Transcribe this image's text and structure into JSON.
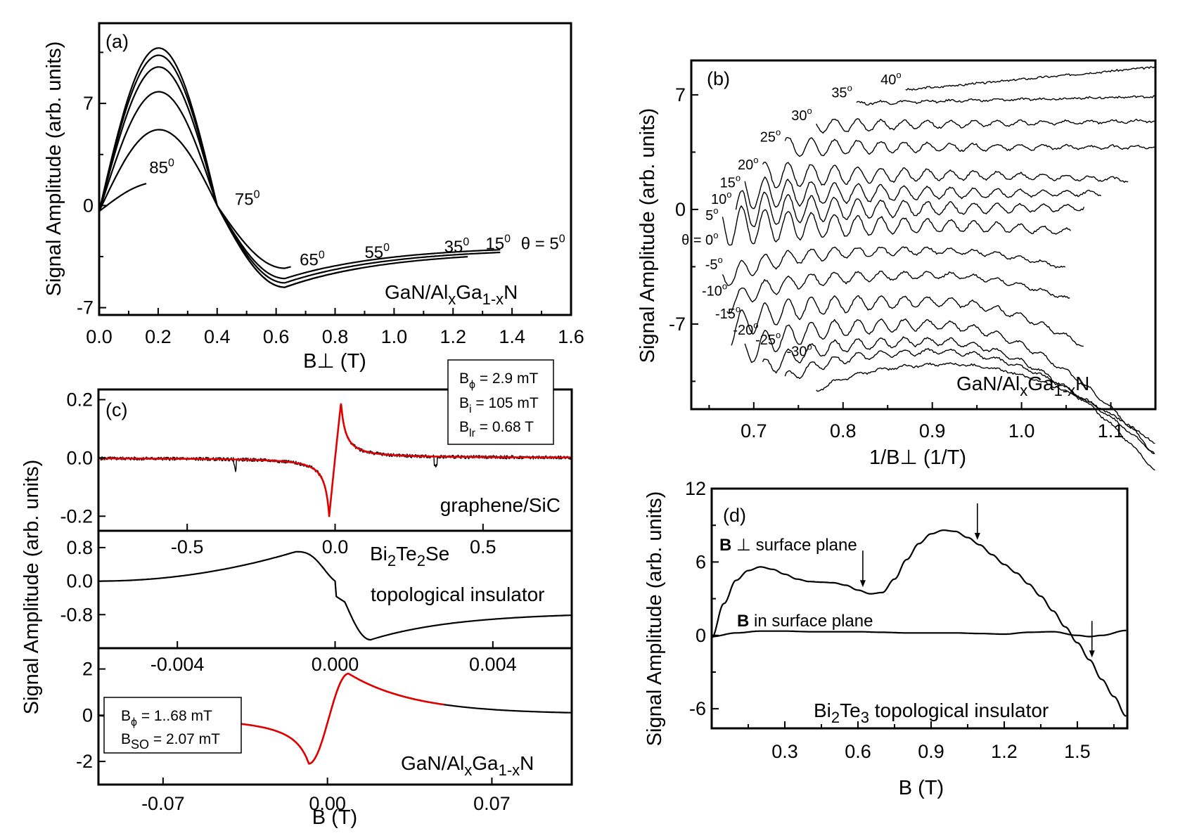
{
  "chart_data": [
    {
      "id": "a",
      "type": "line",
      "panel_label": "(a)",
      "title": "",
      "xlabel": "B⊥ (T)",
      "ylabel": "Signal Amplitude (arb. units)",
      "xlim": [
        0.0,
        1.6
      ],
      "ylim": [
        -7.5,
        12.5
      ],
      "xticks": [
        "0.0",
        "0.2",
        "0.4",
        "0.6",
        "0.8",
        "1.0",
        "1.2",
        "1.4",
        "1.6"
      ],
      "yticks": [
        "-7",
        "0",
        "7"
      ],
      "sample_label": "GaN/AlxGa1-xN",
      "sample_parts": {
        "a": "GaN/Al",
        "b": "x",
        "c": "Ga",
        "d": "1-x",
        "e": "N"
      },
      "grid": false,
      "legend": "none",
      "annotations": [
        {
          "text": "85",
          "sup": "0",
          "x": 0.17,
          "y": 2.2
        },
        {
          "text": "75",
          "sup": "0",
          "x": 0.46,
          "y": 0.05
        },
        {
          "text": "65",
          "sup": "0",
          "x": 0.68,
          "y": -4.1
        },
        {
          "text": "55",
          "sup": "0",
          "x": 0.9,
          "y": -3.6
        },
        {
          "text": "35",
          "sup": "0",
          "x": 1.17,
          "y": -3.2
        },
        {
          "text": "15",
          "sup": "0",
          "x": 1.31,
          "y": -3.0
        },
        {
          "text": "θ = 5",
          "sup": "0",
          "x": 1.43,
          "y": -3.0
        }
      ],
      "series": [
        {
          "name": "5°",
          "peak": 11.0,
          "trough": -5.3,
          "x_end": 1.36
        },
        {
          "name": "15°",
          "peak": 10.5,
          "trough": -5.0,
          "x_end": 1.36
        },
        {
          "name": "35°",
          "peak": 9.7,
          "trough": -5.6,
          "x_end": 1.25
        },
        {
          "name": "55°",
          "peak": 8.0,
          "trough": -5.6,
          "x_end": 0.88
        },
        {
          "name": "65°",
          "peak": 5.4,
          "trough": -4.3,
          "x_end": 0.65
        },
        {
          "name": "85°",
          "peak": 2.0,
          "trough": 0.0,
          "x_end": 0.16
        }
      ]
    },
    {
      "id": "b",
      "type": "line",
      "panel_label": "(b)",
      "xlabel": "1/B⊥ (1/T)",
      "ylabel": "Signal Amplitude (arb. units)",
      "xlim": [
        0.63,
        1.15
      ],
      "ylim": [
        -12.2,
        9.1
      ],
      "xticks": [
        "0.7",
        "0.8",
        "0.9",
        "1.0",
        "1.1"
      ],
      "xtick_values": [
        0.7,
        0.8,
        0.9,
        1.0,
        1.1
      ],
      "yticks": [
        "-7",
        "0",
        "7"
      ],
      "ytick_values": [
        -7,
        0,
        7
      ],
      "sample_parts": {
        "a": "GaN/Al",
        "b": "x",
        "c": "Ga",
        "d": "1-x",
        "e": "N"
      },
      "grid": false,
      "legend": "none",
      "series": [
        {
          "name": "40°",
          "label": "40",
          "x_start": 0.87,
          "x_end": 1.15,
          "offset": 7.3,
          "trend": 1.4,
          "osc": 0.05
        },
        {
          "name": "35°",
          "label": "35",
          "x_start": 0.815,
          "x_end": 1.15,
          "offset": 6.5,
          "trend": 0.4,
          "osc": 0.1
        },
        {
          "name": "30°",
          "label": "30",
          "x_start": 0.77,
          "x_end": 1.15,
          "offset": 5.1,
          "trend": 0.3,
          "osc": 0.35
        },
        {
          "name": "25°",
          "label": "25",
          "x_start": 0.735,
          "x_end": 1.15,
          "offset": 3.8,
          "trend": 0.0,
          "osc": 0.4
        },
        {
          "name": "20°",
          "label": "20",
          "x_start": 0.71,
          "x_end": 1.12,
          "offset": 2.1,
          "trend": -0.2,
          "osc": 0.5
        },
        {
          "name": "15°",
          "label": "15",
          "x_start": 0.69,
          "x_end": 1.09,
          "offset": 1.0,
          "trend": 0.0,
          "osc": 0.55
        },
        {
          "name": "10°",
          "label": "10",
          "x_start": 0.68,
          "x_end": 1.07,
          "offset": 0.0,
          "trend": 0.1,
          "osc": 0.6
        },
        {
          "name": "5°",
          "label": "5",
          "x_start": 0.665,
          "x_end": 1.055,
          "offset": -1.0,
          "trend": -0.5,
          "osc": 0.6
        },
        {
          "name": "0°",
          "label": "θ = 0",
          "x_start": 0.665,
          "x_end": 1.05,
          "offset": -2.5,
          "trend": -1.5,
          "osc": 0.3
        },
        {
          "name": "-5°",
          "label": "-5",
          "x_start": 0.67,
          "x_end": 1.055,
          "offset": -4.0,
          "trend": -2.0,
          "osc": 0.3
        },
        {
          "name": "-10°",
          "label": "-10",
          "x_start": 0.675,
          "x_end": 1.07,
          "offset": -5.6,
          "trend": -3.0,
          "osc": 0.45
        },
        {
          "name": "-15°",
          "label": "-15",
          "x_start": 0.69,
          "x_end": 1.15,
          "offset": -7.0,
          "trend": -4.0,
          "osc": 0.45
        },
        {
          "name": "-20°",
          "label": "-20",
          "x_start": 0.71,
          "x_end": 1.15,
          "offset": -8.0,
          "trend": -4.0,
          "osc": 0.35
        },
        {
          "name": "-25°",
          "label": "-25",
          "x_start": 0.735,
          "x_end": 1.15,
          "offset": -8.6,
          "trend": -3.2,
          "osc": 0.25
        },
        {
          "name": "-30°",
          "label": "-30",
          "x_start": 0.77,
          "x_end": 1.15,
          "offset": -9.3,
          "trend": -2.5,
          "osc": 0.1
        }
      ]
    },
    {
      "id": "c1",
      "type": "line",
      "panel_label": "(c)",
      "xlim": [
        -0.8,
        0.8
      ],
      "ylim": [
        -0.25,
        0.235
      ],
      "xticks": [
        "-0.5",
        "0.0",
        "0.5"
      ],
      "xtick_values": [
        -0.5,
        0.0,
        0.5
      ],
      "yticks": [
        "0.2",
        "0.0",
        "-0.2"
      ],
      "ytick_values": [
        0.2,
        0.0,
        -0.2
      ],
      "sample_label": "graphene/SiC",
      "fit_params": [
        {
          "sym": "B",
          "sub": "ϕ",
          "rest": " = 2.9 mT"
        },
        {
          "sym": "B",
          "sub": "i",
          "rest": " = 105 mT"
        },
        {
          "sym": "B",
          "sub": "lr",
          "rest": " = 0.68 T"
        }
      ],
      "series": [
        {
          "name": "data",
          "color": "#000000",
          "min": -0.2,
          "min_x": -0.02,
          "max": 0.19,
          "max_x": 0.02
        },
        {
          "name": "fit",
          "color": "#e00000",
          "min": -0.2,
          "min_x": -0.02,
          "max": 0.19,
          "max_x": 0.02
        }
      ]
    },
    {
      "id": "c2",
      "type": "line",
      "xlim": [
        -0.006,
        0.006
      ],
      "ylim": [
        -1.6,
        1.2
      ],
      "xticks": [
        "-0.004",
        "0.000",
        "0.004"
      ],
      "xtick_values": [
        -0.004,
        0.0,
        0.004
      ],
      "yticks": [
        "0.8",
        "0.0",
        "-0.8"
      ],
      "ytick_values": [
        0.8,
        0.0,
        -0.8
      ],
      "sample_parts": {
        "a": "Bi",
        "b": "2",
        "c": "Te",
        "d": "2",
        "e": "Se"
      },
      "sample_line2": "topological insulator",
      "series": [
        {
          "name": "data",
          "color": "#000000",
          "max": 0.7,
          "max_x": -0.001,
          "min": -1.4,
          "min_x": 0.0009,
          "end": -0.75
        }
      ]
    },
    {
      "id": "c3",
      "type": "line",
      "xlabel": "B (T)",
      "ylabel": "Signal Amplitude (arb. units)",
      "xlim": [
        -0.0975,
        0.104
      ],
      "ylim": [
        -3.0,
        2.9
      ],
      "xticks": [
        "-0.07",
        "0.00",
        "0.07"
      ],
      "xtick_values": [
        -0.07,
        0.0,
        0.07
      ],
      "yticks": [
        "2",
        "0",
        "-2"
      ],
      "ytick_values": [
        2,
        0,
        -2
      ],
      "sample_parts": {
        "a": "GaN/Al",
        "b": "x",
        "c": "Ga",
        "d": "1-x",
        "e": "N"
      },
      "fit_params": [
        {
          "sym": "B",
          "sub": "ϕ",
          "rest": " = 1..68 mT"
        },
        {
          "sym": "B",
          "sub": "SO",
          "rest": " = 2.07 mT"
        }
      ],
      "series": [
        {
          "name": "data",
          "color": "#000000",
          "min": -2.1,
          "min_x": -0.008,
          "max": 1.8,
          "max_x": 0.009
        },
        {
          "name": "fit",
          "color": "#e00000",
          "x_range": [
            -0.05,
            0.05
          ]
        }
      ]
    },
    {
      "id": "d",
      "type": "line",
      "panel_label": "(d)",
      "xlabel": "B (T)",
      "ylabel": "Signal Amplitude (arb. units)",
      "xlim": [
        0.0,
        1.705
      ],
      "ylim": [
        -7.6,
        12.0
      ],
      "xticks": [
        "0.3",
        "0.6",
        "0.9",
        "1.2",
        "1.5"
      ],
      "xtick_values": [
        0.3,
        0.6,
        0.9,
        1.2,
        1.5
      ],
      "yticks": [
        "12",
        "6",
        "0",
        "-6"
      ],
      "ytick_values": [
        12,
        6,
        0,
        -6
      ],
      "sample_parts": {
        "a": "Bi",
        "b": "2",
        "c": "Te",
        "d": "3",
        "e": " topological insulator"
      },
      "labels": [
        {
          "bold": "B",
          "rest": " ⊥ surface plane"
        },
        {
          "bold": "B",
          "rest": " in surface plane"
        }
      ],
      "arrows_at_x": [
        0.62,
        1.09,
        1.56
      ],
      "series": [
        {
          "name": "B ⊥ surface plane",
          "x": [
            0.0,
            0.05,
            0.1,
            0.15,
            0.2,
            0.25,
            0.3,
            0.35,
            0.4,
            0.45,
            0.5,
            0.55,
            0.6,
            0.65,
            0.7,
            0.75,
            0.8,
            0.85,
            0.9,
            0.95,
            1.0,
            1.05,
            1.1,
            1.15,
            1.2,
            1.25,
            1.3,
            1.35,
            1.4,
            1.45,
            1.5,
            1.55,
            1.6,
            1.65,
            1.7
          ],
          "y": [
            -0.2,
            2.6,
            4.5,
            5.3,
            5.6,
            5.4,
            5.0,
            4.6,
            4.4,
            4.35,
            4.3,
            4.1,
            3.7,
            3.4,
            3.5,
            4.6,
            6.2,
            7.5,
            8.3,
            8.6,
            8.5,
            8.0,
            7.4,
            6.6,
            5.8,
            5.1,
            4.2,
            3.2,
            2.0,
            0.7,
            -0.6,
            -2.0,
            -3.6,
            -5.0,
            -6.6
          ]
        },
        {
          "name": "B in surface plane",
          "x": [
            0.0,
            0.1,
            0.2,
            0.3,
            0.4,
            0.5,
            0.6,
            0.7,
            0.8,
            0.9,
            1.0,
            1.1,
            1.2,
            1.3,
            1.4,
            1.5,
            1.55,
            1.6,
            1.7
          ],
          "y": [
            -0.1,
            0.2,
            0.35,
            0.35,
            0.3,
            0.3,
            0.3,
            0.25,
            0.2,
            0.2,
            0.2,
            0.15,
            0.1,
            0.25,
            0.3,
            0.0,
            -0.1,
            0.0,
            0.4
          ]
        }
      ]
    }
  ]
}
